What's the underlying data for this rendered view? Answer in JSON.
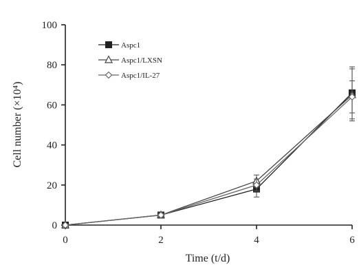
{
  "chart_data": {
    "type": "line",
    "title": "",
    "xlabel": "Time (t/d)",
    "ylabel": "Cell number (×10⁴)",
    "x": [
      0,
      2,
      4,
      6
    ],
    "xlim": [
      0,
      6
    ],
    "ylim": [
      0,
      100
    ],
    "x_ticks": [
      0,
      2,
      4,
      6
    ],
    "y_ticks": [
      0,
      20,
      40,
      60,
      80,
      100
    ],
    "grid": false,
    "legend_position": "top-left",
    "series": [
      {
        "name": "Aspc1",
        "marker": "filled-square",
        "color": "#222222",
        "values": [
          0,
          5,
          18,
          66
        ],
        "error": [
          0,
          1,
          4,
          13
        ]
      },
      {
        "name": "Aspc1/LXSN",
        "marker": "open-triangle",
        "color": "#444444",
        "values": [
          0,
          5,
          22,
          65
        ],
        "error": [
          0,
          1,
          3,
          13
        ]
      },
      {
        "name": "Aspc1/IL-27",
        "marker": "open-diamond",
        "color": "#666666",
        "values": [
          0,
          5,
          20,
          64
        ],
        "error": [
          0,
          1,
          3,
          8
        ]
      }
    ]
  }
}
